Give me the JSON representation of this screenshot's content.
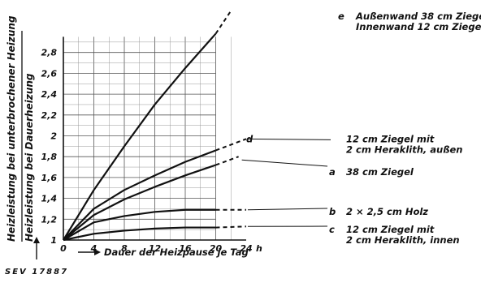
{
  "chart_data": {
    "type": "line",
    "xlabel": "Dauer der Heizpause je Tag",
    "x_unit": "h",
    "ylabel_top": "Heizleistung bei unterbrochener Heizung",
    "ylabel_bottom": "Heizleistung bei Dauerheizung",
    "xlim": [
      0,
      24
    ],
    "ylim": [
      1,
      3
    ],
    "x_ticks": [
      "0",
      "4",
      "8",
      "12",
      "16",
      "20",
      "24"
    ],
    "y_ticks": [
      "1",
      "1,2",
      "1,4",
      "1,6",
      "1,8",
      "2",
      "2,2",
      "2,4",
      "2,6",
      "2,8"
    ],
    "grid": true,
    "reference": "SEV 17887",
    "series": [
      {
        "id": "e",
        "label_lines": [
          "Außenwand 38 cm Ziegel",
          "Innenwand 12 cm Ziegel"
        ],
        "x": [
          0,
          4,
          8,
          12,
          16,
          20
        ],
        "y": [
          1.0,
          1.48,
          1.9,
          2.3,
          2.65,
          2.98
        ],
        "dashed_x": [
          20,
          22
        ],
        "dashed_y": [
          2.98,
          3.2
        ]
      },
      {
        "id": "d",
        "label_lines": [
          "12 cm Ziegel mit",
          "2 cm Heraklith, außen"
        ],
        "x": [
          0,
          4,
          8,
          12,
          16,
          20
        ],
        "y": [
          1.0,
          1.3,
          1.48,
          1.62,
          1.75,
          1.86
        ],
        "dashed_x": [
          20,
          24
        ],
        "dashed_y": [
          1.86,
          1.97
        ]
      },
      {
        "id": "a",
        "label_lines": [
          "38 cm Ziegel"
        ],
        "x": [
          0,
          4,
          8,
          12,
          16,
          20
        ],
        "y": [
          1.0,
          1.24,
          1.39,
          1.51,
          1.62,
          1.72
        ],
        "dashed_x": [
          20,
          23
        ],
        "dashed_y": [
          1.72,
          1.8
        ]
      },
      {
        "id": "b",
        "label_lines": [
          "2 × 2,5 cm Holz"
        ],
        "x": [
          0,
          4,
          8,
          12,
          16,
          20
        ],
        "y": [
          1.0,
          1.17,
          1.23,
          1.27,
          1.29,
          1.29
        ],
        "dashed_x": [
          20,
          24
        ],
        "dashed_y": [
          1.29,
          1.29
        ]
      },
      {
        "id": "c",
        "label_lines": [
          "12 cm Ziegel mit",
          "2 cm Heraklith, innen"
        ],
        "x": [
          0,
          4,
          8,
          12,
          16,
          20
        ],
        "y": [
          1.0,
          1.06,
          1.09,
          1.11,
          1.12,
          1.12
        ],
        "dashed_x": [
          20,
          24
        ],
        "dashed_y": [
          1.12,
          1.13
        ]
      }
    ]
  }
}
